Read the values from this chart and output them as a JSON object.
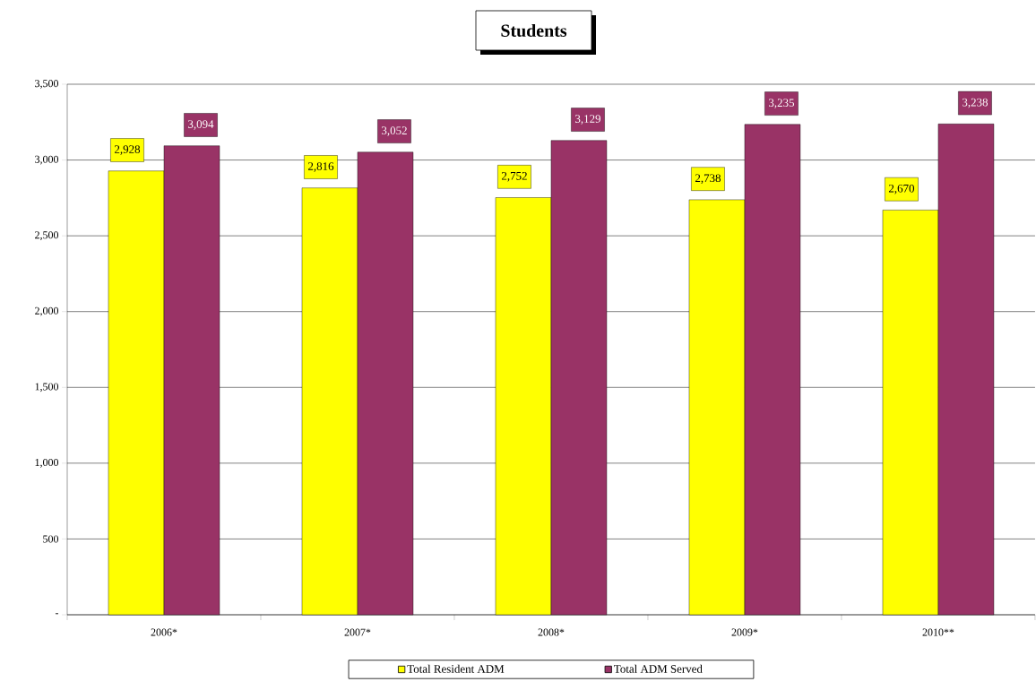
{
  "chart_data": {
    "type": "bar",
    "title": "Students",
    "categories": [
      "2006*",
      "2007*",
      "2008*",
      "2009*",
      "2010**"
    ],
    "series": [
      {
        "name": "Total Resident ADM",
        "color": "#ffff00",
        "values": [
          2928,
          2816,
          2752,
          2738,
          2670
        ],
        "value_labels": [
          "2,928",
          "2,816",
          "2,752",
          "2,738",
          "2,670"
        ]
      },
      {
        "name": "Total ADM Served",
        "color": "#993366",
        "values": [
          3094,
          3052,
          3129,
          3235,
          3238
        ],
        "value_labels": [
          "3,094",
          "3,052",
          "3,129",
          "3,235",
          "3,238"
        ]
      }
    ],
    "ylim": [
      0,
      3500
    ],
    "yticks": [
      {
        "value": 0,
        "label": "-"
      },
      500,
      {
        "value": 1000,
        "label": "1,000"
      },
      {
        "value": 1500,
        "label": "1,500"
      },
      {
        "value": 2000,
        "label": "2,000"
      },
      {
        "value": 2500,
        "label": "2,500"
      },
      {
        "value": 3000,
        "label": "3,000"
      },
      {
        "value": 3500,
        "label": "3,500"
      }
    ],
    "grid": "y",
    "legend": "bottom"
  }
}
